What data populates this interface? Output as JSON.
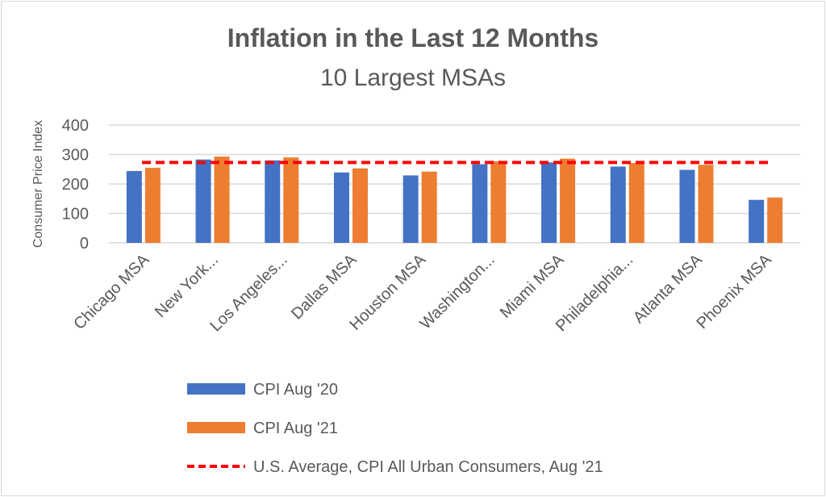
{
  "chart_data": {
    "type": "bar",
    "title": "Inflation in the Last 12 Months",
    "subtitle": "10 Largest MSAs",
    "xlabel": "",
    "ylabel": "Consumer Price Index",
    "ylim": [
      0,
      400
    ],
    "yticks": [
      0,
      100,
      200,
      300,
      400
    ],
    "grid": true,
    "legend_position": "bottom",
    "categories": [
      "Chicago MSA",
      "New York...",
      "Los Angeles...",
      "Dallas MSA",
      "Houston MSA",
      "Washington...",
      "Miami MSA",
      "Philadelphia...",
      "Atlanta MSA",
      "Phoenix MSA"
    ],
    "series": [
      {
        "name": "CPI Aug '20",
        "color": "#4472c4",
        "values": [
          244,
          283,
          280,
          239,
          229,
          267,
          273,
          259,
          248,
          146
        ]
      },
      {
        "name": "CPI Aug '21",
        "color": "#ed7d31",
        "values": [
          255,
          293,
          290,
          253,
          242,
          277,
          286,
          271,
          265,
          154
        ]
      }
    ],
    "reference_line": {
      "name": "U.S. Average, CPI All Urban Consumers, Aug '21",
      "value": 273,
      "color": "#ff0000",
      "style": "dashed"
    }
  }
}
